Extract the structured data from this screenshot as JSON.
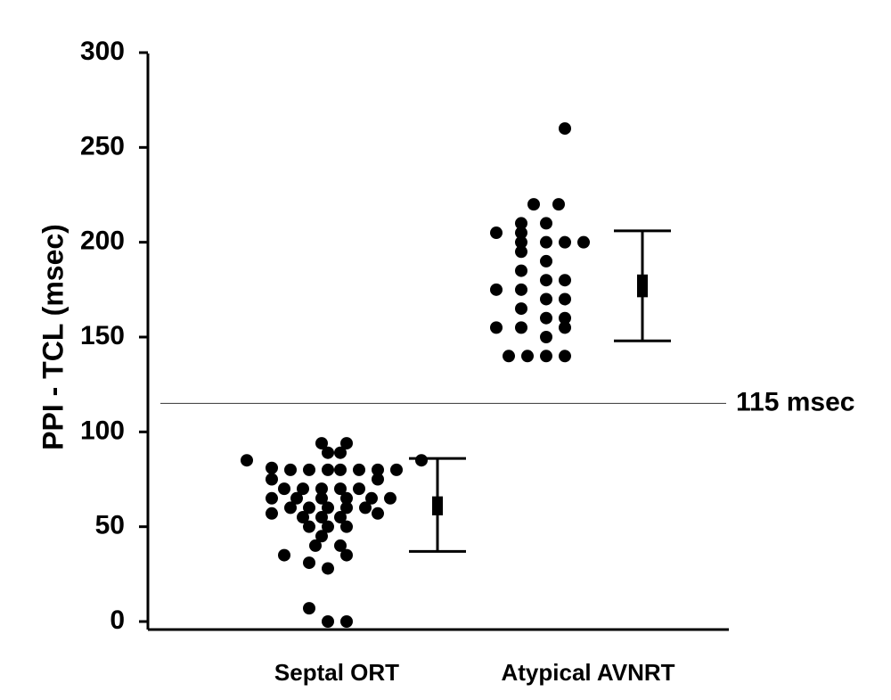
{
  "chart_data": {
    "type": "scatter",
    "title": "",
    "xlabel": "",
    "ylabel": "PPI - TCL (msec)",
    "ylim": [
      0,
      300
    ],
    "yticks": [
      0,
      50,
      100,
      150,
      200,
      250,
      300
    ],
    "grid": false,
    "categories": [
      "Septal ORT",
      "Atypical AVNRT"
    ],
    "groups": [
      {
        "category": "Septal ORT",
        "points": [
          {
            "x": -0.7,
            "y": 85
          },
          {
            "x": 0.7,
            "y": 85
          },
          {
            "x": -0.1,
            "y": 94
          },
          {
            "x": 0.1,
            "y": 94
          },
          {
            "x": -0.05,
            "y": 89
          },
          {
            "x": 0.05,
            "y": 89
          },
          {
            "x": -0.5,
            "y": 81
          },
          {
            "x": -0.35,
            "y": 80
          },
          {
            "x": -0.2,
            "y": 80
          },
          {
            "x": -0.05,
            "y": 80
          },
          {
            "x": 0.05,
            "y": 80
          },
          {
            "x": 0.2,
            "y": 80
          },
          {
            "x": 0.35,
            "y": 80
          },
          {
            "x": 0.5,
            "y": 80
          },
          {
            "x": -0.5,
            "y": 75
          },
          {
            "x": 0.35,
            "y": 75
          },
          {
            "x": -0.4,
            "y": 70
          },
          {
            "x": -0.25,
            "y": 70
          },
          {
            "x": -0.1,
            "y": 70
          },
          {
            "x": 0.05,
            "y": 70
          },
          {
            "x": 0.2,
            "y": 70
          },
          {
            "x": -0.5,
            "y": 65
          },
          {
            "x": -0.3,
            "y": 65
          },
          {
            "x": -0.1,
            "y": 65
          },
          {
            "x": 0.1,
            "y": 65
          },
          {
            "x": 0.3,
            "y": 65
          },
          {
            "x": 0.45,
            "y": 65
          },
          {
            "x": -0.35,
            "y": 60
          },
          {
            "x": -0.2,
            "y": 60
          },
          {
            "x": -0.05,
            "y": 60
          },
          {
            "x": 0.1,
            "y": 60
          },
          {
            "x": 0.25,
            "y": 60
          },
          {
            "x": -0.5,
            "y": 57
          },
          {
            "x": 0.35,
            "y": 57
          },
          {
            "x": -0.25,
            "y": 55
          },
          {
            "x": -0.1,
            "y": 55
          },
          {
            "x": 0.05,
            "y": 55
          },
          {
            "x": -0.2,
            "y": 50
          },
          {
            "x": -0.05,
            "y": 50
          },
          {
            "x": 0.1,
            "y": 50
          },
          {
            "x": -0.1,
            "y": 45
          },
          {
            "x": -0.15,
            "y": 40
          },
          {
            "x": 0.05,
            "y": 40
          },
          {
            "x": -0.4,
            "y": 35
          },
          {
            "x": 0.1,
            "y": 35
          },
          {
            "x": -0.2,
            "y": 31
          },
          {
            "x": -0.05,
            "y": 28
          },
          {
            "x": -0.2,
            "y": 7
          },
          {
            "x": -0.05,
            "y": 0
          },
          {
            "x": 0.1,
            "y": 0
          }
        ],
        "error_bar": {
          "mean": 61,
          "upper": 86,
          "lower": 37,
          "mean_band": [
            56,
            66
          ]
        }
      },
      {
        "category": "Atypical AVNRT",
        "points": [
          {
            "x": 0.1,
            "y": 260
          },
          {
            "x": -0.15,
            "y": 220
          },
          {
            "x": 0.05,
            "y": 220
          },
          {
            "x": -0.25,
            "y": 210
          },
          {
            "x": -0.05,
            "y": 210
          },
          {
            "x": -0.45,
            "y": 205
          },
          {
            "x": -0.25,
            "y": 205
          },
          {
            "x": -0.25,
            "y": 200
          },
          {
            "x": -0.05,
            "y": 200
          },
          {
            "x": 0.1,
            "y": 200
          },
          {
            "x": 0.25,
            "y": 200
          },
          {
            "x": -0.25,
            "y": 195
          },
          {
            "x": -0.05,
            "y": 190
          },
          {
            "x": -0.25,
            "y": 185
          },
          {
            "x": -0.05,
            "y": 180
          },
          {
            "x": 0.1,
            "y": 180
          },
          {
            "x": -0.45,
            "y": 175
          },
          {
            "x": -0.25,
            "y": 175
          },
          {
            "x": -0.05,
            "y": 170
          },
          {
            "x": 0.1,
            "y": 170
          },
          {
            "x": -0.25,
            "y": 165
          },
          {
            "x": -0.05,
            "y": 160
          },
          {
            "x": 0.1,
            "y": 160
          },
          {
            "x": -0.45,
            "y": 155
          },
          {
            "x": -0.25,
            "y": 155
          },
          {
            "x": 0.1,
            "y": 155
          },
          {
            "x": -0.05,
            "y": 150
          },
          {
            "x": -0.35,
            "y": 140
          },
          {
            "x": -0.2,
            "y": 140
          },
          {
            "x": -0.05,
            "y": 140
          },
          {
            "x": 0.1,
            "y": 140
          }
        ],
        "error_bar": {
          "mean": 177,
          "upper": 206,
          "lower": 148,
          "mean_band": [
            171,
            183
          ]
        }
      }
    ],
    "threshold": {
      "value": 115,
      "label": "115 msec"
    }
  }
}
